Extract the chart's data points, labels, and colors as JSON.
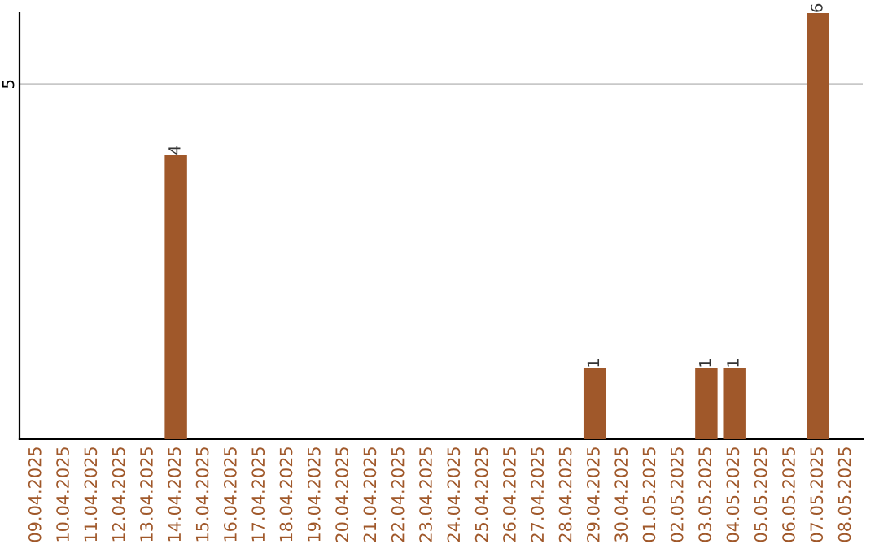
{
  "chart_data": {
    "type": "bar",
    "categories": [
      "09.04.2025",
      "10.04.2025",
      "11.04.2025",
      "12.04.2025",
      "13.04.2025",
      "14.04.2025",
      "15.04.2025",
      "16.04.2025",
      "17.04.2025",
      "18.04.2025",
      "19.04.2025",
      "20.04.2025",
      "21.04.2025",
      "22.04.2025",
      "23.04.2025",
      "24.04.2025",
      "25.04.2025",
      "26.04.2025",
      "27.04.2025",
      "28.04.2025",
      "29.04.2025",
      "30.04.2025",
      "01.05.2025",
      "02.05.2025",
      "03.05.2025",
      "04.05.2025",
      "05.05.2025",
      "06.05.2025",
      "07.05.2025",
      "08.05.2025"
    ],
    "values": [
      0,
      0,
      0,
      0,
      0,
      4,
      0,
      0,
      0,
      0,
      0,
      0,
      0,
      0,
      0,
      0,
      0,
      0,
      0,
      0,
      1,
      0,
      0,
      0,
      1,
      1,
      0,
      0,
      6,
      0
    ],
    "value_labels": [
      null,
      null,
      null,
      null,
      null,
      "4",
      null,
      null,
      null,
      null,
      null,
      null,
      null,
      null,
      null,
      null,
      null,
      null,
      null,
      null,
      "1",
      null,
      null,
      null,
      "1",
      "1",
      null,
      null,
      "6",
      null
    ],
    "color": "#a0582a",
    "ylim": [
      0,
      6
    ],
    "yticks": [
      5
    ],
    "grid": "y"
  }
}
